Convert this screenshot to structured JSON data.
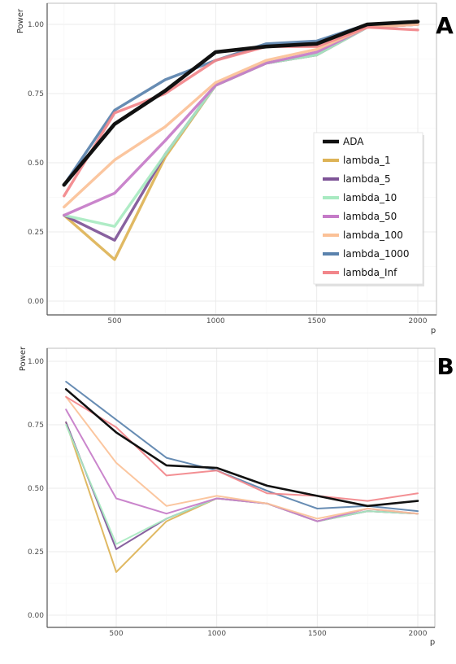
{
  "chart_data": [
    {
      "type": "line",
      "panel_label": "A",
      "xlabel": "p",
      "ylabel": "Power",
      "x": [
        250,
        500,
        750,
        1000,
        1250,
        1500,
        1750,
        2000
      ],
      "x_tick_labels": [
        "500",
        "1000",
        "1500",
        "2000"
      ],
      "y_tick_labels": [
        "0.00",
        "0.25",
        "0.50",
        "0.75",
        "1.00"
      ],
      "xlim": [
        200,
        2080
      ],
      "ylim": [
        -0.02,
        1.06
      ],
      "grid": true,
      "legend_position": "right",
      "series": [
        {
          "name": "lambda_1",
          "color": "#DDB356",
          "values": [
            0.31,
            0.15,
            0.52,
            0.78,
            0.86,
            0.89,
            0.99,
            1.0
          ]
        },
        {
          "name": "lambda_5",
          "color": "#7E5497",
          "values": [
            0.31,
            0.22,
            0.53,
            0.78,
            0.86,
            0.89,
            0.99,
            1.0
          ]
        },
        {
          "name": "lambda_10",
          "color": "#A8EAC1",
          "values": [
            0.31,
            0.27,
            0.53,
            0.78,
            0.86,
            0.89,
            0.99,
            1.0
          ]
        },
        {
          "name": "lambda_50",
          "color": "#C57BC8",
          "values": [
            0.31,
            0.39,
            0.58,
            0.78,
            0.86,
            0.9,
            0.99,
            1.0
          ]
        },
        {
          "name": "lambda_100",
          "color": "#FBC197",
          "values": [
            0.34,
            0.51,
            0.63,
            0.79,
            0.87,
            0.91,
            0.99,
            1.0
          ]
        },
        {
          "name": "lambda_1000",
          "color": "#5A82AD",
          "values": [
            0.42,
            0.69,
            0.8,
            0.87,
            0.93,
            0.94,
            1.0,
            1.01
          ]
        },
        {
          "name": "lambda_Inf",
          "color": "#F2868A",
          "values": [
            0.38,
            0.68,
            0.75,
            0.87,
            0.92,
            0.92,
            0.99,
            0.98
          ]
        },
        {
          "name": "ADA",
          "color": "#111111",
          "values": [
            0.42,
            0.64,
            0.76,
            0.9,
            0.92,
            0.93,
            1.0,
            1.01
          ]
        }
      ],
      "legend_order": [
        "ADA",
        "lambda_1",
        "lambda_5",
        "lambda_10",
        "lambda_50",
        "lambda_100",
        "lambda_1000",
        "lambda_Inf"
      ]
    },
    {
      "type": "line",
      "panel_label": "B",
      "xlabel": "p",
      "ylabel": "Power",
      "x": [
        250,
        500,
        750,
        1000,
        1250,
        1500,
        1750,
        2000
      ],
      "x_tick_labels": [
        "500",
        "1000",
        "1500",
        "2000"
      ],
      "y_tick_labels": [
        "0.00",
        "0.25",
        "0.50",
        "0.75",
        "1.00"
      ],
      "xlim": [
        200,
        2080
      ],
      "ylim": [
        -0.04,
        1.04
      ],
      "grid": true,
      "series": [
        {
          "name": "lambda_1",
          "color": "#DDB356",
          "values": [
            0.76,
            0.17,
            0.37,
            0.46,
            0.44,
            0.37,
            0.41,
            0.4
          ]
        },
        {
          "name": "lambda_5",
          "color": "#7E5497",
          "values": [
            0.76,
            0.26,
            0.38,
            0.46,
            0.44,
            0.37,
            0.41,
            0.4
          ]
        },
        {
          "name": "lambda_10",
          "color": "#A8EAC1",
          "values": [
            0.75,
            0.28,
            0.38,
            0.46,
            0.44,
            0.37,
            0.41,
            0.4
          ]
        },
        {
          "name": "lambda_50",
          "color": "#C57BC8",
          "values": [
            0.81,
            0.46,
            0.4,
            0.46,
            0.44,
            0.37,
            0.42,
            0.4
          ]
        },
        {
          "name": "lambda_100",
          "color": "#FBC197",
          "values": [
            0.86,
            0.6,
            0.43,
            0.47,
            0.44,
            0.38,
            0.42,
            0.4
          ]
        },
        {
          "name": "lambda_1000",
          "color": "#5A82AD",
          "values": [
            0.92,
            0.77,
            0.62,
            0.57,
            0.49,
            0.42,
            0.43,
            0.41
          ]
        },
        {
          "name": "lambda_Inf",
          "color": "#F2868A",
          "values": [
            0.86,
            0.74,
            0.55,
            0.57,
            0.48,
            0.47,
            0.45,
            0.48
          ]
        },
        {
          "name": "ADA",
          "color": "#111111",
          "values": [
            0.89,
            0.72,
            0.59,
            0.58,
            0.51,
            0.47,
            0.43,
            0.45
          ]
        }
      ]
    }
  ]
}
